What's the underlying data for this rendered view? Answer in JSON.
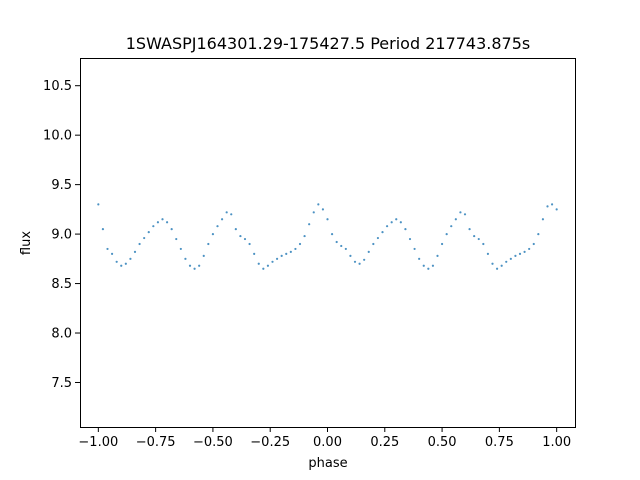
{
  "chart_data": {
    "type": "scatter",
    "title": "1SWASPJ164301.29-175427.5 Period 217743.875s",
    "xlabel": "phase",
    "ylabel": "flux",
    "xlim": [
      -1.08,
      1.08
    ],
    "ylim": [
      7.05,
      10.78
    ],
    "xticks": [
      -1.0,
      -0.75,
      -0.5,
      -0.25,
      0.0,
      0.25,
      0.5,
      0.75,
      1.0
    ],
    "xtick_labels": [
      "−1.00",
      "−0.75",
      "−0.50",
      "−0.25",
      "0.00",
      "0.25",
      "0.50",
      "0.75",
      "1.00"
    ],
    "yticks": [
      7.5,
      8.0,
      8.5,
      9.0,
      9.5,
      10.0,
      10.5
    ],
    "ytick_labels": [
      "7.5",
      "8.0",
      "8.5",
      "9.0",
      "9.5",
      "10.0",
      "10.5"
    ],
    "grid": false,
    "marker_color": "#1f77b4",
    "series": [
      {
        "points": [
          [
            -1.0,
            9.3
          ],
          [
            -0.98,
            9.05
          ],
          [
            -0.96,
            8.85
          ],
          [
            -0.94,
            8.8
          ],
          [
            -0.92,
            8.72
          ],
          [
            -0.9,
            8.68
          ],
          [
            -0.88,
            8.7
          ],
          [
            -0.86,
            8.75
          ],
          [
            -0.84,
            8.82
          ],
          [
            -0.82,
            8.9
          ],
          [
            -0.8,
            8.96
          ],
          [
            -0.78,
            9.02
          ],
          [
            -0.76,
            9.08
          ],
          [
            -0.74,
            9.12
          ],
          [
            -0.72,
            9.15
          ],
          [
            -0.7,
            9.12
          ],
          [
            -0.68,
            9.05
          ],
          [
            -0.66,
            8.95
          ],
          [
            -0.64,
            8.85
          ],
          [
            -0.62,
            8.75
          ],
          [
            -0.6,
            8.68
          ],
          [
            -0.58,
            8.65
          ],
          [
            -0.56,
            8.68
          ],
          [
            -0.54,
            8.78
          ],
          [
            -0.52,
            8.9
          ],
          [
            -0.5,
            9.0
          ],
          [
            -0.48,
            9.08
          ],
          [
            -0.46,
            9.15
          ],
          [
            -0.44,
            9.22
          ],
          [
            -0.42,
            9.2
          ],
          [
            -0.4,
            9.05
          ],
          [
            -0.38,
            8.98
          ],
          [
            -0.36,
            8.95
          ],
          [
            -0.34,
            8.9
          ],
          [
            -0.32,
            8.8
          ],
          [
            -0.3,
            8.7
          ],
          [
            -0.28,
            8.65
          ],
          [
            -0.26,
            8.68
          ],
          [
            -0.24,
            8.72
          ],
          [
            -0.22,
            8.75
          ],
          [
            -0.2,
            8.78
          ],
          [
            -0.18,
            8.8
          ],
          [
            -0.16,
            8.82
          ],
          [
            -0.14,
            8.85
          ],
          [
            -0.12,
            8.9
          ],
          [
            -0.1,
            8.98
          ],
          [
            -0.08,
            9.1
          ],
          [
            -0.06,
            9.22
          ],
          [
            -0.04,
            9.3
          ],
          [
            -0.02,
            9.25
          ],
          [
            0.0,
            9.15
          ],
          [
            0.02,
            9.0
          ],
          [
            0.04,
            8.92
          ],
          [
            0.06,
            8.88
          ],
          [
            0.08,
            8.85
          ],
          [
            0.1,
            8.78
          ],
          [
            0.12,
            8.72
          ],
          [
            0.14,
            8.7
          ],
          [
            0.16,
            8.74
          ],
          [
            0.18,
            8.82
          ],
          [
            0.2,
            8.9
          ],
          [
            0.22,
            8.96
          ],
          [
            0.24,
            9.02
          ],
          [
            0.26,
            9.08
          ],
          [
            0.28,
            9.12
          ],
          [
            0.3,
            9.15
          ],
          [
            0.32,
            9.12
          ],
          [
            0.34,
            9.05
          ],
          [
            0.36,
            8.95
          ],
          [
            0.38,
            8.85
          ],
          [
            0.4,
            8.75
          ],
          [
            0.42,
            8.68
          ],
          [
            0.44,
            8.65
          ],
          [
            0.46,
            8.68
          ],
          [
            0.48,
            8.78
          ],
          [
            0.5,
            8.9
          ],
          [
            0.52,
            9.0
          ],
          [
            0.54,
            9.08
          ],
          [
            0.56,
            9.15
          ],
          [
            0.58,
            9.22
          ],
          [
            0.6,
            9.2
          ],
          [
            0.62,
            9.05
          ],
          [
            0.64,
            8.98
          ],
          [
            0.66,
            8.95
          ],
          [
            0.68,
            8.9
          ],
          [
            0.7,
            8.8
          ],
          [
            0.72,
            8.7
          ],
          [
            0.74,
            8.65
          ],
          [
            0.76,
            8.68
          ],
          [
            0.78,
            8.72
          ],
          [
            0.8,
            8.75
          ],
          [
            0.82,
            8.78
          ],
          [
            0.84,
            8.8
          ],
          [
            0.86,
            8.82
          ],
          [
            0.88,
            8.85
          ],
          [
            0.9,
            8.9
          ],
          [
            0.92,
            9.0
          ],
          [
            0.94,
            9.15
          ],
          [
            0.96,
            9.28
          ],
          [
            0.98,
            9.3
          ],
          [
            1.0,
            9.25
          ]
        ]
      }
    ]
  }
}
